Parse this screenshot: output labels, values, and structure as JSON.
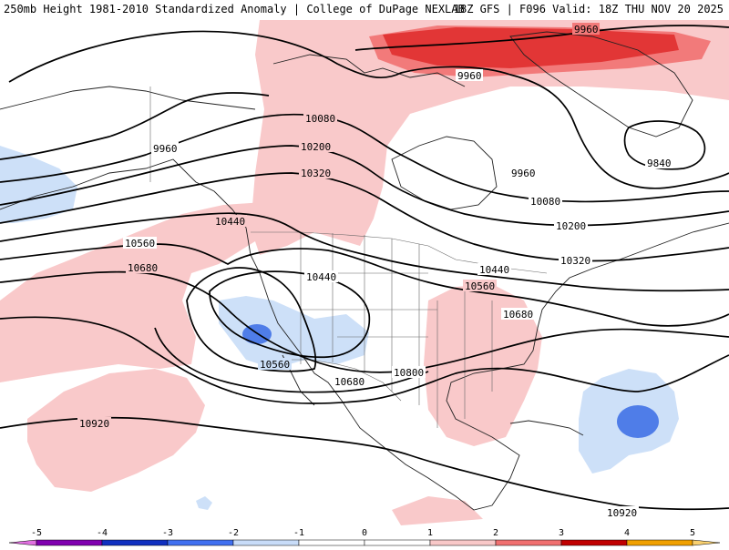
{
  "header": {
    "left_text": "250mb Height 1981-2010 Standardized Anomaly | College of DuPage NEXLAB",
    "right_text": "18Z GFS | F096 Valid: 18Z THU NOV 20 2025"
  },
  "contour_labels": [
    {
      "id": "c-9960-top",
      "text": "9960"
    },
    {
      "id": "c-9960-mid",
      "text": "9960"
    },
    {
      "id": "c-9960-west",
      "text": "9960"
    },
    {
      "id": "c-9960-east",
      "text": "9960"
    },
    {
      "id": "c-9840",
      "text": "9840"
    },
    {
      "id": "c-10080-a",
      "text": "10080"
    },
    {
      "id": "c-10080-b",
      "text": "10080"
    },
    {
      "id": "c-10200-a",
      "text": "10200"
    },
    {
      "id": "c-10200-b",
      "text": "10200"
    },
    {
      "id": "c-10320-a",
      "text": "10320"
    },
    {
      "id": "c-10320-b",
      "text": "10320"
    },
    {
      "id": "c-10440-a",
      "text": "10440"
    },
    {
      "id": "c-10440-b",
      "text": "10440"
    },
    {
      "id": "c-10440-c",
      "text": "10440"
    },
    {
      "id": "c-10560-a",
      "text": "10560"
    },
    {
      "id": "c-10560-b",
      "text": "10560"
    },
    {
      "id": "c-10560-c",
      "text": "10560"
    },
    {
      "id": "c-10680-a",
      "text": "10680"
    },
    {
      "id": "c-10680-b",
      "text": "10680"
    },
    {
      "id": "c-10680-c",
      "text": "10680"
    },
    {
      "id": "c-10800",
      "text": "10800"
    },
    {
      "id": "c-10920-a",
      "text": "10920"
    },
    {
      "id": "c-10920-b",
      "text": "10920"
    }
  ],
  "colorbar": {
    "ticks": [
      "-5",
      "-4",
      "-3",
      "-2",
      "-1",
      "0",
      "1",
      "2",
      "3",
      "4",
      "5"
    ],
    "colors": [
      "#e070e0",
      "#8000b0",
      "#1030c0",
      "#4070f0",
      "#c8dcf8",
      "#ffffff",
      "#ffffff",
      "#f8c8c8",
      "#f07070",
      "#c00000",
      "#f0a000",
      "#f8d070"
    ]
  },
  "palette": {
    "positive_light": "#f9c9ca",
    "positive_mid": "#f27a7a",
    "positive_strong": "#e23636",
    "negative_light": "#cde0f8",
    "negative_mid": "#4f7de8"
  }
}
